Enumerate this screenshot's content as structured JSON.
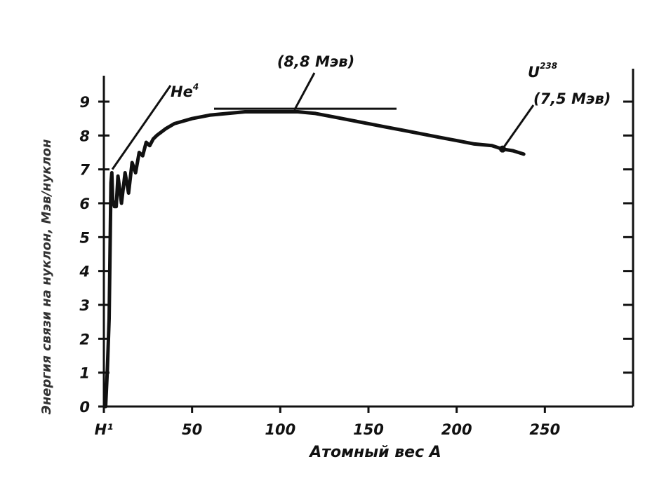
{
  "chart_data": {
    "type": "line",
    "title": "",
    "xlabel": "Атомный вес A",
    "ylabel": "Энергия связи на нуклон, Мэв/нуклон",
    "xlim": [
      0,
      300
    ],
    "ylim": [
      0,
      9
    ],
    "x_ticks": [
      0,
      50,
      100,
      150,
      200,
      250
    ],
    "x_tick_labels": [
      "H¹",
      "50",
      "100",
      "150",
      "200",
      "250"
    ],
    "y_ticks": [
      0,
      1,
      2,
      3,
      4,
      5,
      6,
      7,
      8,
      9
    ],
    "y_tick_labels": [
      "0",
      "1",
      "2",
      "3",
      "4",
      "5",
      "6",
      "7",
      "8",
      "9"
    ],
    "grid": false,
    "series": [
      {
        "x": [
          1,
          2,
          3,
          4,
          4.5,
          5,
          6,
          7,
          8,
          10,
          12,
          14,
          16,
          18,
          20,
          22,
          24,
          26,
          28,
          30,
          35,
          40,
          50,
          60,
          70,
          80,
          90,
          100,
          110,
          120,
          130,
          140,
          150,
          160,
          170,
          180,
          190,
          200,
          210,
          220,
          226,
          232,
          238
        ],
        "values": [
          0,
          1.1,
          2.6,
          6.6,
          6.9,
          6.1,
          5.9,
          5.9,
          6.8,
          6.0,
          6.9,
          6.3,
          7.2,
          6.9,
          7.5,
          7.4,
          7.8,
          7.7,
          7.9,
          8.0,
          8.2,
          8.35,
          8.5,
          8.6,
          8.65,
          8.7,
          8.7,
          8.7,
          8.7,
          8.65,
          8.55,
          8.45,
          8.35,
          8.25,
          8.15,
          8.05,
          7.95,
          7.85,
          7.75,
          7.7,
          7.6,
          7.55,
          7.45
        ]
      }
    ],
    "annotations": [
      {
        "text": "He⁴",
        "base": "He",
        "sup": "4",
        "x": 4,
        "y": 7.0
      },
      {
        "text": "(8,8 Мэв)",
        "x": 108,
        "y": 8.75
      },
      {
        "text": "U²³⁸",
        "base": "U",
        "sup": "238",
        "x": 226,
        "y": 7.6
      },
      {
        "text": "(7,5 Мэв)",
        "x": 226,
        "y": 7.6
      }
    ]
  }
}
